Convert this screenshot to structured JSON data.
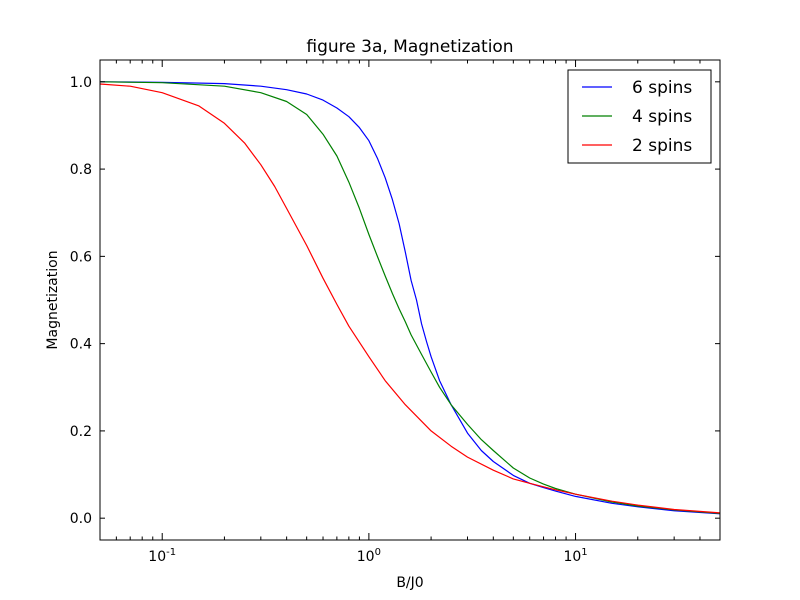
{
  "chart_data": {
    "type": "line",
    "title": "figure 3a, Magnetization",
    "xlabel": "B/J0",
    "ylabel": "Magnetization",
    "xscale": "log",
    "xlim": [
      0.05,
      50
    ],
    "ylim": [
      -0.05,
      1.05
    ],
    "x_ticks": [
      {
        "value": 0.1,
        "base": "10",
        "exp": "-1"
      },
      {
        "value": 1,
        "base": "10",
        "exp": "0"
      },
      {
        "value": 10,
        "base": "10",
        "exp": "1"
      }
    ],
    "y_ticks": [
      {
        "value": 0.0,
        "label": "0.0"
      },
      {
        "value": 0.2,
        "label": "0.2"
      },
      {
        "value": 0.4,
        "label": "0.4"
      },
      {
        "value": 0.6,
        "label": "0.6"
      },
      {
        "value": 0.8,
        "label": "0.8"
      },
      {
        "value": 1.0,
        "label": "1.0"
      }
    ],
    "grid": false,
    "legend_position": "top-right",
    "series": [
      {
        "name": "6 spins",
        "color": "#0000ff",
        "x": [
          0.05,
          0.1,
          0.2,
          0.3,
          0.4,
          0.5,
          0.6,
          0.7,
          0.8,
          0.9,
          1.0,
          1.1,
          1.2,
          1.3,
          1.4,
          1.5,
          1.6,
          1.7,
          1.8,
          1.9,
          2.0,
          2.2,
          2.5,
          3.0,
          3.5,
          4.0,
          5.0,
          6.0,
          7.0,
          8.0,
          10,
          15,
          20,
          30,
          50
        ],
        "y": [
          1.0,
          0.999,
          0.996,
          0.99,
          0.982,
          0.972,
          0.958,
          0.94,
          0.92,
          0.895,
          0.865,
          0.825,
          0.78,
          0.73,
          0.675,
          0.61,
          0.545,
          0.5,
          0.445,
          0.405,
          0.37,
          0.315,
          0.26,
          0.195,
          0.155,
          0.13,
          0.098,
          0.08,
          0.07,
          0.062,
          0.05,
          0.034,
          0.026,
          0.017,
          0.01
        ]
      },
      {
        "name": "4 spins",
        "color": "#008000",
        "x": [
          0.05,
          0.1,
          0.2,
          0.3,
          0.4,
          0.5,
          0.6,
          0.7,
          0.8,
          0.9,
          1.0,
          1.1,
          1.2,
          1.3,
          1.4,
          1.5,
          1.6,
          1.8,
          2.0,
          2.2,
          2.5,
          3.0,
          3.5,
          4.0,
          5.0,
          6.0,
          7.0,
          8.0,
          10,
          15,
          20,
          30,
          50
        ],
        "y": [
          1.0,
          0.998,
          0.99,
          0.975,
          0.955,
          0.925,
          0.88,
          0.83,
          0.77,
          0.71,
          0.65,
          0.6,
          0.555,
          0.515,
          0.48,
          0.45,
          0.42,
          0.375,
          0.335,
          0.3,
          0.26,
          0.215,
          0.18,
          0.155,
          0.115,
          0.092,
          0.078,
          0.068,
          0.055,
          0.037,
          0.028,
          0.019,
          0.011
        ]
      },
      {
        "name": "2 spins",
        "color": "#ff0000",
        "x": [
          0.05,
          0.07,
          0.1,
          0.15,
          0.2,
          0.25,
          0.3,
          0.35,
          0.4,
          0.5,
          0.6,
          0.7,
          0.8,
          1.0,
          1.2,
          1.5,
          2.0,
          2.5,
          3.0,
          4.0,
          5.0,
          6.0,
          7.0,
          8.0,
          10,
          15,
          20,
          30,
          50
        ],
        "y": [
          0.995,
          0.99,
          0.975,
          0.945,
          0.905,
          0.86,
          0.81,
          0.76,
          0.71,
          0.625,
          0.55,
          0.49,
          0.44,
          0.37,
          0.315,
          0.26,
          0.2,
          0.165,
          0.14,
          0.11,
          0.09,
          0.08,
          0.072,
          0.065,
          0.055,
          0.039,
          0.03,
          0.02,
          0.012
        ]
      }
    ]
  }
}
